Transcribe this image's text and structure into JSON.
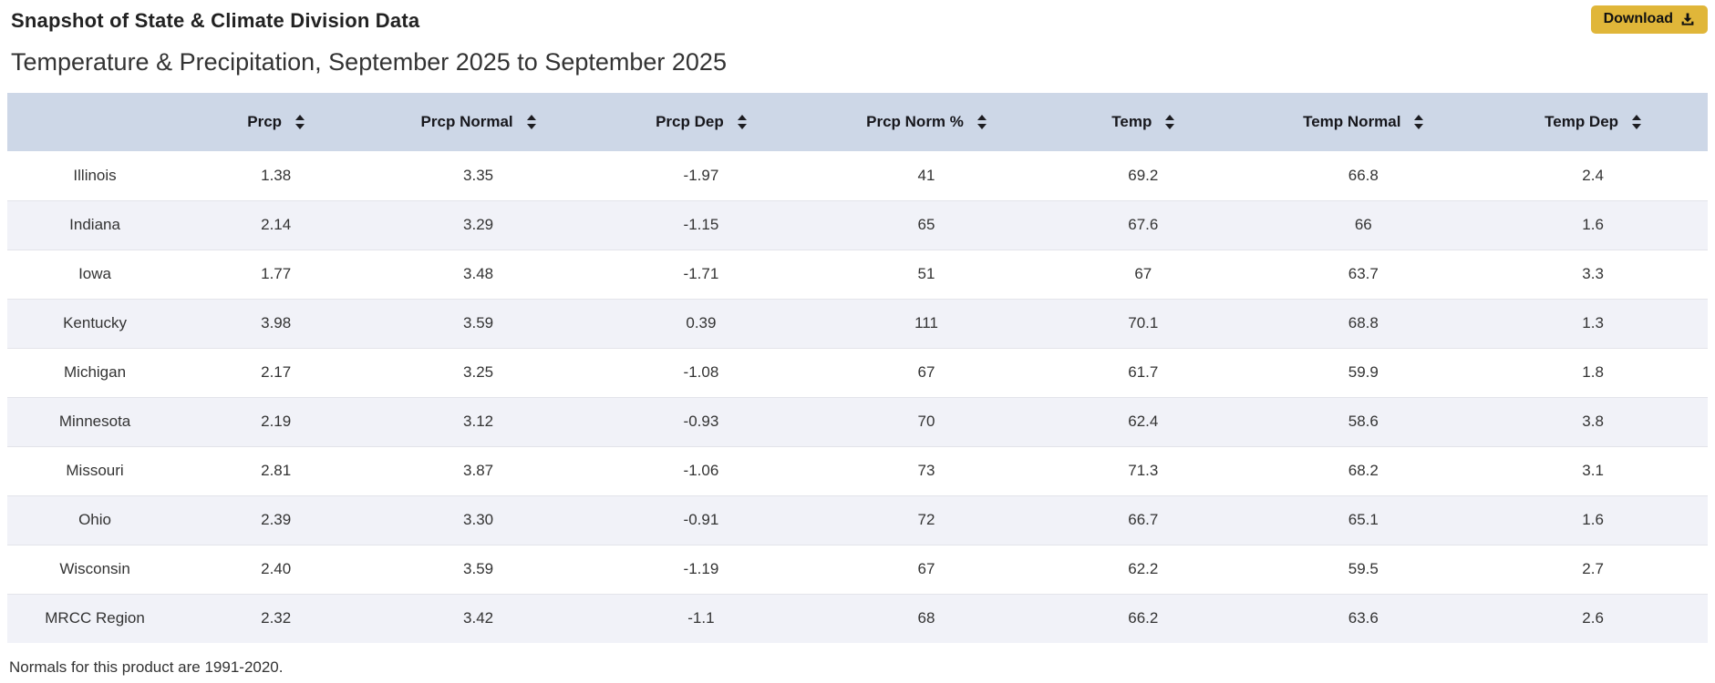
{
  "page": {
    "title": "Snapshot of State & Climate Division Data",
    "subtitle": "Temperature & Precipitation, September 2025 to September 2025",
    "footnote": "Normals for this product are 1991-2020."
  },
  "toolbar": {
    "download_label": "Download",
    "download_icon": "download-icon"
  },
  "colors": {
    "accent_gold": "#e0b639",
    "header_bg": "#cdd7e7",
    "stripe_bg": "#f1f2f8"
  },
  "table": {
    "columns": [
      {
        "label": "",
        "sortable": false,
        "key": "state"
      },
      {
        "label": "Prcp",
        "sortable": true,
        "key": "prcp"
      },
      {
        "label": "Prcp Normal",
        "sortable": true,
        "key": "prcp-normal"
      },
      {
        "label": "Prcp Dep",
        "sortable": true,
        "key": "prcp-dep"
      },
      {
        "label": "Prcp Norm %",
        "sortable": true,
        "key": "prcp-norm-pct"
      },
      {
        "label": "Temp",
        "sortable": true,
        "key": "temp"
      },
      {
        "label": "Temp Normal",
        "sortable": true,
        "key": "temp-normal"
      },
      {
        "label": "Temp Dep",
        "sortable": true,
        "key": "temp-dep"
      }
    ],
    "rows": [
      {
        "name": "Illinois",
        "values": [
          "1.38",
          "3.35",
          "-1.97",
          "41",
          "69.2",
          "66.8",
          "2.4"
        ]
      },
      {
        "name": "Indiana",
        "values": [
          "2.14",
          "3.29",
          "-1.15",
          "65",
          "67.6",
          "66",
          "1.6"
        ]
      },
      {
        "name": "Iowa",
        "values": [
          "1.77",
          "3.48",
          "-1.71",
          "51",
          "67",
          "63.7",
          "3.3"
        ]
      },
      {
        "name": "Kentucky",
        "values": [
          "3.98",
          "3.59",
          "0.39",
          "111",
          "70.1",
          "68.8",
          "1.3"
        ]
      },
      {
        "name": "Michigan",
        "values": [
          "2.17",
          "3.25",
          "-1.08",
          "67",
          "61.7",
          "59.9",
          "1.8"
        ]
      },
      {
        "name": "Minnesota",
        "values": [
          "2.19",
          "3.12",
          "-0.93",
          "70",
          "62.4",
          "58.6",
          "3.8"
        ]
      },
      {
        "name": "Missouri",
        "values": [
          "2.81",
          "3.87",
          "-1.06",
          "73",
          "71.3",
          "68.2",
          "3.1"
        ]
      },
      {
        "name": "Ohio",
        "values": [
          "2.39",
          "3.30",
          "-0.91",
          "72",
          "66.7",
          "65.1",
          "1.6"
        ]
      },
      {
        "name": "Wisconsin",
        "values": [
          "2.40",
          "3.59",
          "-1.19",
          "67",
          "62.2",
          "59.5",
          "2.7"
        ]
      },
      {
        "name": "MRCC Region",
        "values": [
          "2.32",
          "3.42",
          "-1.1",
          "68",
          "66.2",
          "63.6",
          "2.6"
        ]
      }
    ]
  }
}
